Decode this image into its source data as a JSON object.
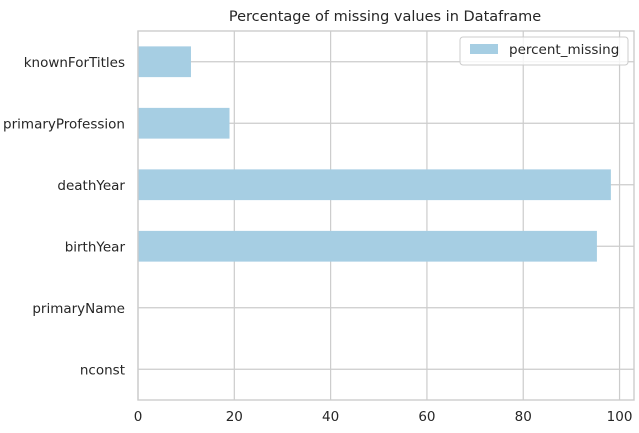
{
  "chart_data": {
    "type": "bar",
    "orientation": "horizontal",
    "title": "Percentage of missing values in Dataframe",
    "categories": [
      "nconst",
      "primaryName",
      "birthYear",
      "deathYear",
      "primaryProfession",
      "knownForTitles"
    ],
    "series": [
      {
        "name": "percent_missing",
        "values": [
          0,
          0,
          95.3,
          98.2,
          19.0,
          11.0
        ]
      }
    ],
    "xlim": [
      0,
      103
    ],
    "xticks": [
      0,
      20,
      40,
      60,
      80,
      100
    ],
    "xlabel": "",
    "ylabel": "",
    "grid": true,
    "legend_position": "top-right",
    "colors": {
      "bar": "#a6cee3",
      "grid": "#cccccc",
      "axes": "#cccccc",
      "text": "#262626",
      "background": "#ffffff"
    }
  }
}
